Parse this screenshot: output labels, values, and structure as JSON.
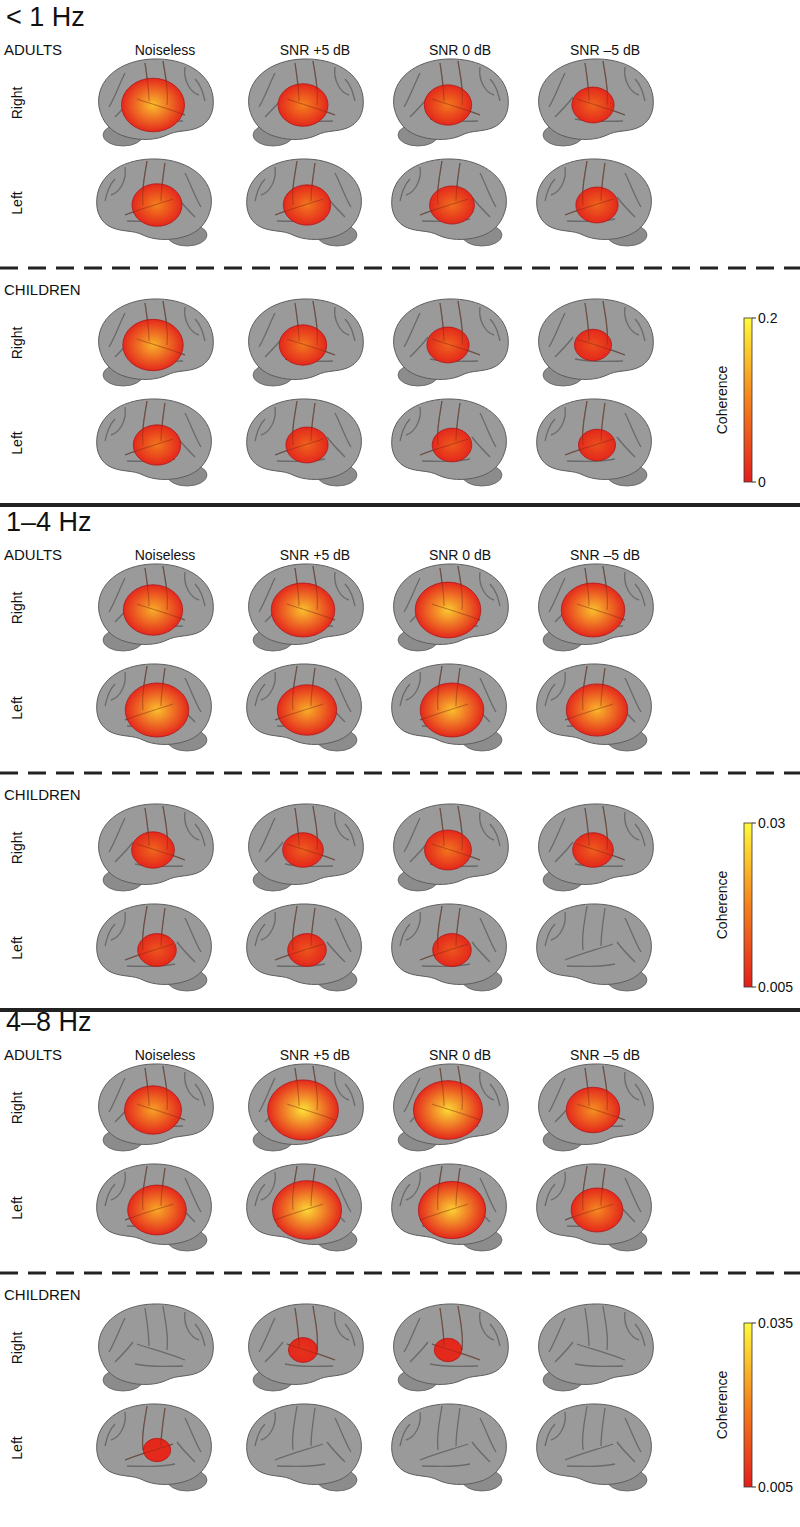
{
  "chart_data": [
    {
      "type": "heatmap",
      "title": "< 1 Hz",
      "conditions": [
        "Noiseless",
        "SNR +5 dB",
        "SNR 0 dB",
        "SNR –5 dB"
      ],
      "groups": [
        {
          "name": "ADULTS",
          "hemispheres": [
            {
              "name": "Right",
              "values": [
                0.15,
                0.1,
                0.09,
                0.07
              ]
            },
            {
              "name": "Left",
              "values": [
                0.1,
                0.09,
                0.08,
                0.07
              ]
            }
          ]
        },
        {
          "name": "CHILDREN",
          "hemispheres": [
            {
              "name": "Right",
              "values": [
                0.14,
                0.09,
                0.07,
                0.05
              ]
            },
            {
              "name": "Left",
              "values": [
                0.09,
                0.07,
                0.06,
                0.05
              ]
            }
          ]
        }
      ],
      "colorbar": {
        "label": "Coherence",
        "range": [
          0,
          0.2
        ],
        "ticks": [
          0,
          0.2
        ]
      }
    },
    {
      "type": "heatmap",
      "title": "1–4 Hz",
      "conditions": [
        "Noiseless",
        "SNR +5 dB",
        "SNR 0 dB",
        "SNR –5 dB"
      ],
      "groups": [
        {
          "name": "ADULTS",
          "hemispheres": [
            {
              "name": "Right",
              "values": [
                0.022,
                0.024,
                0.025,
                0.024
              ]
            },
            {
              "name": "Left",
              "values": [
                0.024,
                0.022,
                0.024,
                0.023
              ]
            }
          ]
        },
        {
          "name": "CHILDREN",
          "hemispheres": [
            {
              "name": "Right",
              "values": [
                0.014,
                0.013,
                0.016,
                0.013
              ]
            },
            {
              "name": "Left",
              "values": [
                0.012,
                0.012,
                0.012,
                null
              ]
            }
          ]
        }
      ],
      "colorbar": {
        "label": "Coherence",
        "range": [
          0.005,
          0.03
        ],
        "ticks": [
          0.005,
          0.03
        ]
      }
    },
    {
      "type": "heatmap",
      "title": "4–8 Hz",
      "conditions": [
        "Noiseless",
        "SNR +5 dB",
        "SNR 0 dB",
        "SNR –5 dB"
      ],
      "groups": [
        {
          "name": "ADULTS",
          "hemispheres": [
            {
              "name": "Right",
              "values": [
                0.024,
                0.032,
                0.031,
                0.022
              ]
            },
            {
              "name": "Left",
              "values": [
                0.025,
                0.031,
                0.03,
                0.021
              ]
            }
          ]
        },
        {
          "name": "CHILDREN",
          "hemispheres": [
            {
              "name": "Right",
              "values": [
                null,
                0.008,
                0.007,
                null
              ]
            },
            {
              "name": "Left",
              "values": [
                0.007,
                null,
                null,
                null
              ]
            }
          ]
        }
      ],
      "colorbar": {
        "label": "Coherence",
        "range": [
          0.005,
          0.035
        ],
        "ticks": [
          0.005,
          0.035
        ]
      }
    }
  ]
}
